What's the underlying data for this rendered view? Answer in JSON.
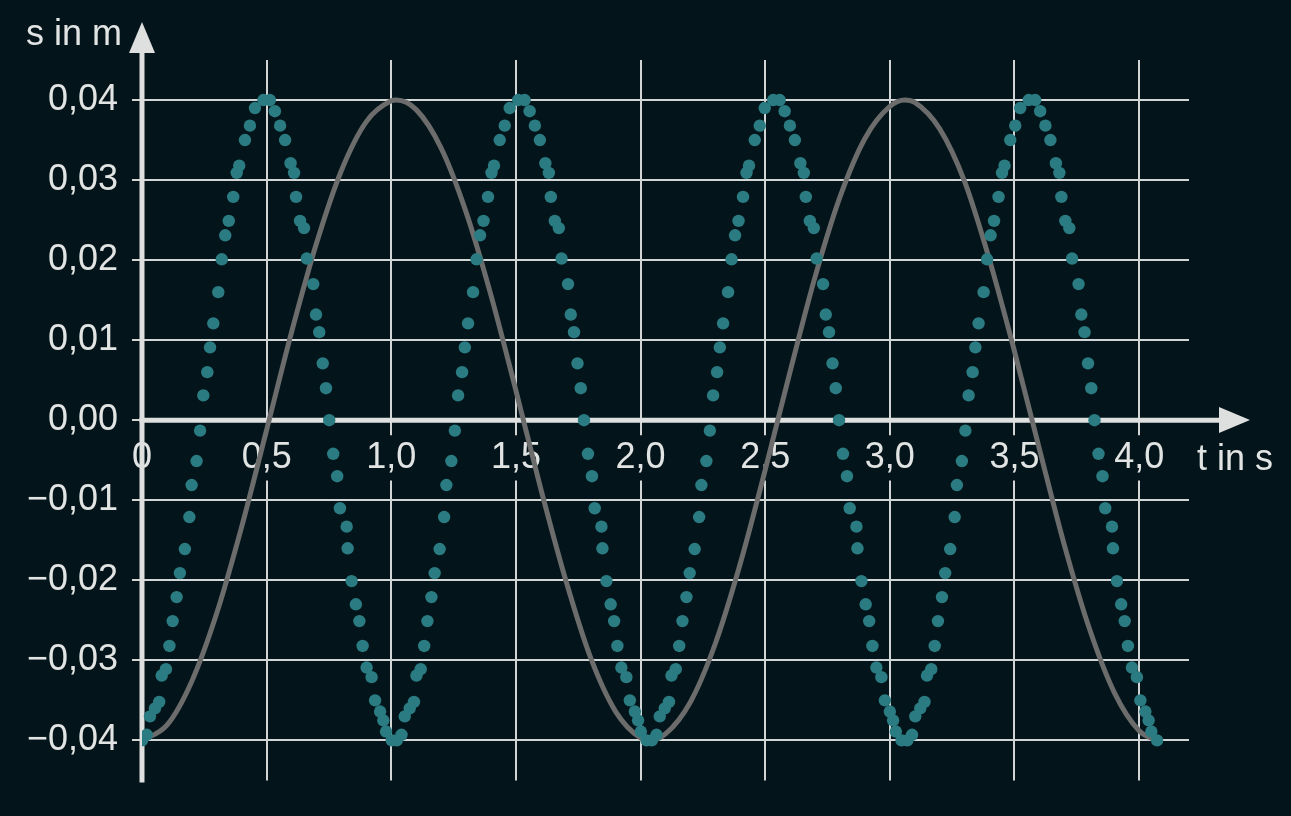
{
  "chart_data": {
    "type": "line",
    "xlabel": "t in s",
    "ylabel": "s in m",
    "xlim": [
      0,
      4.2
    ],
    "ylim": [
      -0.045,
      0.045
    ],
    "xticks": [
      0,
      {
        "value": 0.5,
        "label": "0,5"
      },
      {
        "value": 1,
        "label": "1,0"
      },
      {
        "value": 1.5,
        "label": "1,5"
      },
      {
        "value": 2,
        "label": "2,0"
      },
      {
        "value": 2.5,
        "label": "2,5"
      },
      {
        "value": 3,
        "label": "3,0"
      },
      {
        "value": 3.5,
        "label": "3,5"
      },
      {
        "value": 4,
        "label": "4,0"
      }
    ],
    "yticks": [
      {
        "value": -0.04,
        "label": "−0,04"
      },
      {
        "value": -0.03,
        "label": "−0,03"
      },
      {
        "value": -0.02,
        "label": "−0,02"
      },
      {
        "value": -0.01,
        "label": "−0,01"
      },
      {
        "value": 0,
        "label": "0,00"
      },
      {
        "value": 0.01,
        "label": "0,01"
      },
      {
        "value": 0.02,
        "label": "0,02"
      },
      {
        "value": 0.03,
        "label": "0,03"
      },
      {
        "value": 0.04,
        "label": "0,04"
      }
    ],
    "grid": true,
    "series": [
      {
        "type": "scatter",
        "color": "#2b7c82",
        "marker": "circle",
        "x": [
          0,
          0.019,
          0.032,
          0.052,
          0.069,
          0.079,
          0.096,
          0.11,
          0.123,
          0.139,
          0.152,
          0.172,
          0.19,
          0.199,
          0.219,
          0.233,
          0.246,
          0.262,
          0.273,
          0.286,
          0.306,
          0.32,
          0.334,
          0.348,
          0.366,
          0.38,
          0.39,
          0.413,
          0.433,
          0.453,
          0.487,
          0.513,
          0.533,
          0.554,
          0.574,
          0.596,
          0.61,
          0.618,
          0.634,
          0.65,
          0.661,
          0.687,
          0.698,
          0.711,
          0.725,
          0.738,
          0.751,
          0.767,
          0.783,
          0.794,
          0.821,
          0.825,
          0.841,
          0.858,
          0.872,
          0.885,
          0.901,
          0.921,
          0.935,
          0.955,
          0.968,
          0.979,
          1.002,
          1.022,
          1.041,
          1.054,
          1.074,
          1.091,
          1.101,
          1.118,
          1.132,
          1.145,
          1.161,
          1.174,
          1.194,
          1.212,
          1.221,
          1.241,
          1.255,
          1.268,
          1.284,
          1.295,
          1.308,
          1.328,
          1.342,
          1.356,
          1.37,
          1.388,
          1.402,
          1.412,
          1.435,
          1.455,
          1.475,
          1.509,
          1.535,
          1.555,
          1.576,
          1.596,
          1.618,
          1.632,
          1.64,
          1.656,
          1.672,
          1.683,
          1.709,
          1.72,
          1.733,
          1.747,
          1.76,
          1.773,
          1.789,
          1.805,
          1.816,
          1.843,
          1.847,
          1.863,
          1.88,
          1.894,
          1.907,
          1.923,
          1.943,
          1.957,
          1.977,
          1.99,
          2.001,
          2.024,
          2.045,
          2.064,
          2.077,
          2.097,
          2.114,
          2.124,
          2.141,
          2.155,
          2.168,
          2.184,
          2.197,
          2.217,
          2.235,
          2.244,
          2.264,
          2.278,
          2.291,
          2.307,
          2.318,
          2.331,
          2.351,
          2.365,
          2.379,
          2.393,
          2.411,
          2.425,
          2.435,
          2.458,
          2.478,
          2.498,
          2.532,
          2.558,
          2.578,
          2.599,
          2.619,
          2.641,
          2.655,
          2.663,
          2.679,
          2.695,
          2.706,
          2.732,
          2.743,
          2.756,
          2.77,
          2.783,
          2.796,
          2.812,
          2.828,
          2.839,
          2.866,
          2.87,
          2.886,
          2.903,
          2.917,
          2.93,
          2.946,
          2.966,
          2.98,
          3,
          3.013,
          3.024,
          3.047,
          3.07,
          3.089,
          3.102,
          3.122,
          3.139,
          3.149,
          3.166,
          3.18,
          3.193,
          3.209,
          3.222,
          3.242,
          3.26,
          3.269,
          3.289,
          3.303,
          3.316,
          3.332,
          3.343,
          3.356,
          3.376,
          3.39,
          3.404,
          3.418,
          3.436,
          3.45,
          3.46,
          3.483,
          3.503,
          3.523,
          3.557,
          3.583,
          3.603,
          3.624,
          3.644,
          3.666,
          3.68,
          3.688,
          3.704,
          3.72,
          3.731,
          3.757,
          3.768,
          3.781,
          3.795,
          3.808,
          3.821,
          3.837,
          3.853,
          3.864,
          3.891,
          3.895,
          3.911,
          3.928,
          3.942,
          3.955,
          3.971,
          3.991,
          4.005,
          4.025,
          4.038,
          4.049,
          4.072
        ],
        "values": [
          -0.04,
          -0.0393,
          -0.037,
          -0.036,
          -0.0352,
          -0.0319,
          -0.0311,
          -0.0282,
          -0.0251,
          -0.0221,
          -0.0191,
          -0.0161,
          -0.0121,
          -0.0081,
          -0.0051,
          -0.0013,
          0.0031,
          0.006,
          0.0091,
          0.0121,
          0.016,
          0.0201,
          0.0231,
          0.0249,
          0.0279,
          0.0309,
          0.0318,
          0.035,
          0.0368,
          0.039,
          0.04,
          0.04,
          0.0386,
          0.0368,
          0.035,
          0.0321,
          0.0309,
          0.0279,
          0.0249,
          0.024,
          0.0202,
          0.017,
          0.0132,
          0.011,
          0.0071,
          0.004,
          0,
          -0.0042,
          -0.007,
          -0.011,
          -0.0133,
          -0.016,
          -0.0201,
          -0.023,
          -0.0251,
          -0.0282,
          -0.0309,
          -0.0321,
          -0.035,
          -0.0364,
          -0.0375,
          -0.0389,
          -0.04,
          -0.04,
          -0.0393,
          -0.037,
          -0.036,
          -0.0352,
          -0.0319,
          -0.0311,
          -0.0282,
          -0.0251,
          -0.0221,
          -0.0191,
          -0.0161,
          -0.0121,
          -0.0081,
          -0.0051,
          -0.0013,
          0.0031,
          0.006,
          0.0091,
          0.0121,
          0.016,
          0.0201,
          0.0231,
          0.0249,
          0.0279,
          0.0309,
          0.0318,
          0.035,
          0.0368,
          0.039,
          0.04,
          0.04,
          0.0386,
          0.0368,
          0.035,
          0.0321,
          0.0309,
          0.0279,
          0.0249,
          0.024,
          0.0202,
          0.017,
          0.0132,
          0.011,
          0.0071,
          0.004,
          0,
          -0.0042,
          -0.007,
          -0.011,
          -0.0133,
          -0.016,
          -0.0201,
          -0.023,
          -0.0251,
          -0.0282,
          -0.0309,
          -0.0321,
          -0.035,
          -0.0364,
          -0.0375,
          -0.0389,
          -0.04,
          -0.04,
          -0.0393,
          -0.037,
          -0.036,
          -0.0352,
          -0.0319,
          -0.0311,
          -0.0282,
          -0.0251,
          -0.0221,
          -0.0191,
          -0.0161,
          -0.0121,
          -0.0081,
          -0.0051,
          -0.0013,
          0.0031,
          0.006,
          0.0091,
          0.0121,
          0.016,
          0.0201,
          0.0231,
          0.0249,
          0.0279,
          0.0309,
          0.0318,
          0.035,
          0.0368,
          0.039,
          0.04,
          0.04,
          0.0386,
          0.0368,
          0.035,
          0.0321,
          0.0309,
          0.0279,
          0.0249,
          0.024,
          0.0202,
          0.017,
          0.0132,
          0.011,
          0.0071,
          0.004,
          0,
          -0.0042,
          -0.007,
          -0.011,
          -0.0133,
          -0.016,
          -0.0201,
          -0.023,
          -0.0251,
          -0.0282,
          -0.0309,
          -0.0321,
          -0.035,
          -0.0364,
          -0.0375,
          -0.0389,
          -0.04,
          -0.04,
          -0.0393,
          -0.037,
          -0.036,
          -0.0352,
          -0.0319,
          -0.0311,
          -0.0282,
          -0.0251,
          -0.0221,
          -0.0191,
          -0.0161,
          -0.0121,
          -0.0081,
          -0.0051,
          -0.0013,
          0.0031,
          0.006,
          0.0091,
          0.0121,
          0.016,
          0.0201,
          0.0231,
          0.0249,
          0.0279,
          0.0309,
          0.0318,
          0.035,
          0.0368,
          0.039,
          0.04,
          0.04,
          0.0386,
          0.0368,
          0.035,
          0.0321,
          0.0309,
          0.0279,
          0.0249,
          0.024,
          0.0202,
          0.017,
          0.0132,
          0.011,
          0.0071,
          0.004,
          0,
          -0.0042,
          -0.007,
          -0.011,
          -0.0133,
          -0.016,
          -0.0201,
          -0.023,
          -0.0251,
          -0.0282,
          -0.0309,
          -0.0321,
          -0.035,
          -0.0364,
          -0.0375,
          -0.0389,
          -0.04
        ]
      },
      {
        "color": "#6c6c6c",
        "line_style": "solid",
        "x": [
          0,
          0.1,
          0.2,
          0.3,
          0.4,
          0.5,
          0.6,
          0.7,
          0.8,
          0.9,
          1,
          1.02,
          1.1,
          1.2,
          1.3,
          1.4,
          1.5,
          1.6,
          1.7,
          1.8,
          1.9,
          2,
          2.04,
          2.1,
          2.2,
          2.3,
          2.4,
          2.5,
          2.6,
          2.7,
          2.8,
          2.9,
          3,
          3.06,
          3.1,
          3.2,
          3.3,
          3.4,
          3.5,
          3.6,
          3.7,
          3.8,
          3.9,
          4,
          4.07
        ],
        "values": [
          -0.04,
          -0.0381,
          -0.0326,
          -0.0241,
          -0.0133,
          -0.0012,
          0.011,
          0.0221,
          0.0312,
          0.0373,
          0.0399,
          0.04,
          0.0388,
          0.034,
          0.026,
          0.0156,
          0.0037,
          -0.0086,
          -0.02,
          -0.0297,
          -0.0364,
          -0.0397,
          -0.04,
          -0.0392,
          -0.0352,
          -0.0279,
          -0.0179,
          -0.0062,
          0.0061,
          0.0179,
          0.0279,
          0.0352,
          0.0392,
          0.04,
          0.0397,
          0.0364,
          0.0298,
          0.02,
          0.0086,
          -0.0036,
          -0.0156,
          -0.026,
          -0.034,
          -0.0388,
          -0.04
        ]
      }
    ]
  }
}
